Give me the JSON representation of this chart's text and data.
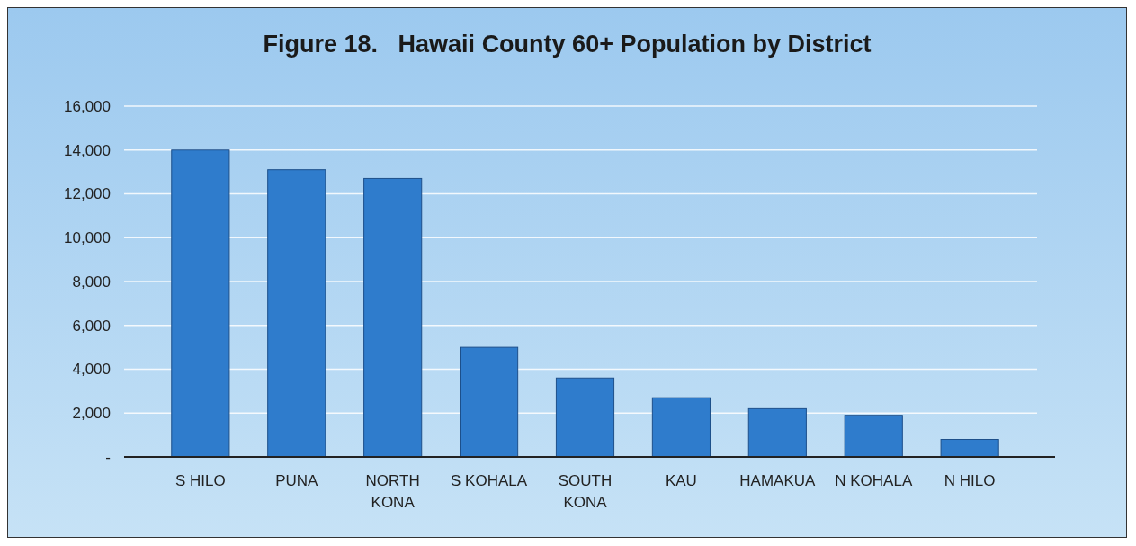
{
  "chart_data": {
    "type": "bar",
    "title": "Figure 18.   Hawaii County 60+ Population by District",
    "categories": [
      "S HILO",
      "PUNA",
      "NORTH KONA",
      "S KOHALA",
      "SOUTH KONA",
      "KAU",
      "HAMAKUA",
      "N KOHALA",
      "N HILO"
    ],
    "values": [
      14000,
      13100,
      12700,
      5000,
      3600,
      2700,
      2200,
      1900,
      800
    ],
    "color": "#2f7ccc",
    "ylim": [
      0,
      16000
    ],
    "yticks": [
      {
        "value": 0,
        "label": "-"
      },
      {
        "value": 2000,
        "label": "2,000"
      },
      {
        "value": 4000,
        "label": "4,000"
      },
      {
        "value": 6000,
        "label": "6,000"
      },
      {
        "value": 8000,
        "label": "8,000"
      },
      {
        "value": 10000,
        "label": "10,000"
      },
      {
        "value": 12000,
        "label": "12,000"
      },
      {
        "value": 14000,
        "label": "14,000"
      },
      {
        "value": 16000,
        "label": "16,000"
      }
    ],
    "grid": true
  }
}
